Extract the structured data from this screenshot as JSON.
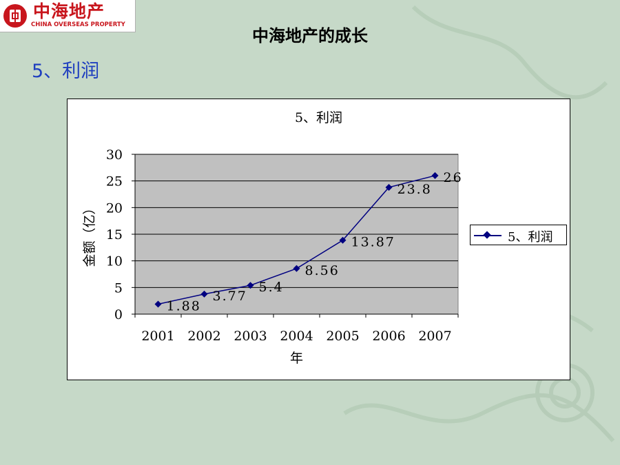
{
  "header": {
    "logo_cn": "中海地产",
    "logo_en": "CHINA OVERSEAS PROPERTY",
    "page_title": "中海地产的成长",
    "section_title": "5、利润"
  },
  "colors": {
    "background": "#c6d9c8",
    "title_blue": "#1f3fbf",
    "brand_red": "#c8161d",
    "plot_area": "#c0c0c0",
    "series_line": "#000080"
  },
  "chart_data": {
    "type": "line",
    "title": "5、利润",
    "xlabel": "年",
    "ylabel": "金额（亿）",
    "categories": [
      "2001",
      "2002",
      "2003",
      "2004",
      "2005",
      "2006",
      "2007"
    ],
    "series": [
      {
        "name": "5、利润",
        "values": [
          1.88,
          3.77,
          5.4,
          8.56,
          13.87,
          23.8,
          26
        ]
      }
    ],
    "data_labels": [
      "1.88",
      "3.77",
      "5.4",
      "8.56",
      "13.87",
      "23.8",
      "26"
    ],
    "ylim": [
      0,
      30
    ],
    "yticks": [
      0,
      5,
      10,
      15,
      20,
      25,
      30
    ],
    "grid": true,
    "legend": "right"
  }
}
